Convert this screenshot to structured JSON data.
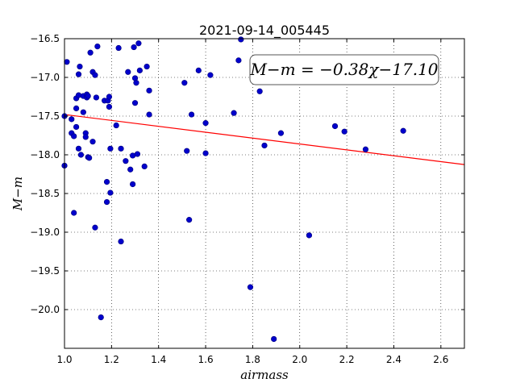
{
  "chart_data": {
    "type": "scatter",
    "title": "2021-09-14_005445",
    "xlabel": "airmass",
    "ylabel": "M−m",
    "xlim": [
      1.0,
      2.7
    ],
    "ylim": [
      -20.5,
      -16.5
    ],
    "y_inverted": true,
    "grid": true,
    "x_ticks": [
      1.0,
      1.2,
      1.4,
      1.6,
      1.8,
      2.0,
      2.2,
      2.4,
      2.6
    ],
    "x_tick_labels": [
      "1.0",
      "1.2",
      "1.4",
      "1.6",
      "1.8",
      "2.0",
      "2.2",
      "2.4",
      "2.6"
    ],
    "y_ticks": [
      -16.5,
      -17.0,
      -17.5,
      -18.0,
      -18.5,
      -19.0,
      -19.5,
      -20.0
    ],
    "y_tick_labels": [
      "−16.5",
      "−17.0",
      "−17.5",
      "−18.0",
      "−18.5",
      "−19.0",
      "−19.5",
      "−20.0"
    ],
    "annotation": "M−m = −0.38χ−17.10",
    "point_color": "#0000cc",
    "fit_color": "#ff0000",
    "fit": {
      "slope": -0.38,
      "intercept": -17.1
    },
    "points": [
      [
        1.0,
        -17.5
      ],
      [
        1.0,
        -18.14
      ],
      [
        1.01,
        -16.8
      ],
      [
        1.03,
        -17.54
      ],
      [
        1.03,
        -17.72
      ],
      [
        1.04,
        -17.76
      ],
      [
        1.04,
        -18.75
      ],
      [
        1.05,
        -17.64
      ],
      [
        1.05,
        -17.4
      ],
      [
        1.05,
        -17.27
      ],
      [
        1.06,
        -17.23
      ],
      [
        1.06,
        -16.96
      ],
      [
        1.06,
        -17.92
      ],
      [
        1.065,
        -16.86
      ],
      [
        1.07,
        -18.0
      ],
      [
        1.08,
        -17.24
      ],
      [
        1.08,
        -17.45
      ],
      [
        1.09,
        -17.72
      ],
      [
        1.09,
        -17.77
      ],
      [
        1.095,
        -17.22
      ],
      [
        1.095,
        -17.26
      ],
      [
        1.1,
        -17.24
      ],
      [
        1.1,
        -18.03
      ],
      [
        1.105,
        -18.04
      ],
      [
        1.11,
        -16.68
      ],
      [
        1.12,
        -16.93
      ],
      [
        1.12,
        -17.83
      ],
      [
        1.13,
        -16.97
      ],
      [
        1.13,
        -18.94
      ],
      [
        1.135,
        -17.26
      ],
      [
        1.14,
        -16.6
      ],
      [
        1.155,
        -20.1
      ],
      [
        1.17,
        -17.3
      ],
      [
        1.18,
        -18.35
      ],
      [
        1.18,
        -18.61
      ],
      [
        1.185,
        -17.3
      ],
      [
        1.19,
        -17.38
      ],
      [
        1.19,
        -17.25
      ],
      [
        1.195,
        -18.49
      ],
      [
        1.195,
        -17.92
      ],
      [
        1.22,
        -17.62
      ],
      [
        1.23,
        -16.62
      ],
      [
        1.24,
        -17.92
      ],
      [
        1.24,
        -19.12
      ],
      [
        1.26,
        -18.08
      ],
      [
        1.27,
        -16.93
      ],
      [
        1.28,
        -18.19
      ],
      [
        1.29,
        -18.01
      ],
      [
        1.29,
        -18.38
      ],
      [
        1.295,
        -16.61
      ],
      [
        1.3,
        -17.33
      ],
      [
        1.3,
        -17.01
      ],
      [
        1.305,
        -17.07
      ],
      [
        1.31,
        -17.99
      ],
      [
        1.315,
        -16.56
      ],
      [
        1.32,
        -16.91
      ],
      [
        1.34,
        -18.15
      ],
      [
        1.35,
        -16.86
      ],
      [
        1.36,
        -17.17
      ],
      [
        1.36,
        -17.48
      ],
      [
        1.51,
        -17.07
      ],
      [
        1.52,
        -17.95
      ],
      [
        1.53,
        -18.84
      ],
      [
        1.54,
        -17.48
      ],
      [
        1.57,
        -16.91
      ],
      [
        1.6,
        -17.59
      ],
      [
        1.6,
        -17.98
      ],
      [
        1.62,
        -16.97
      ],
      [
        1.72,
        -17.46
      ],
      [
        1.74,
        -16.78
      ],
      [
        1.75,
        -16.51
      ],
      [
        1.79,
        -19.71
      ],
      [
        1.83,
        -17.18
      ],
      [
        1.85,
        -17.88
      ],
      [
        1.89,
        -20.38
      ],
      [
        1.92,
        -17.72
      ],
      [
        2.04,
        -19.04
      ],
      [
        2.15,
        -17.63
      ],
      [
        2.19,
        -17.7
      ],
      [
        2.28,
        -17.93
      ],
      [
        2.44,
        -17.69
      ]
    ]
  }
}
